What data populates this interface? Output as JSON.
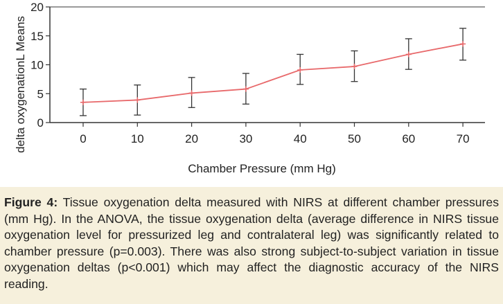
{
  "chart_data": {
    "type": "line",
    "title": "",
    "xlabel": "Chamber Pressure (mm Hg)",
    "ylabel": "delta oxygenationL Means",
    "x": [
      0,
      10,
      20,
      30,
      40,
      50,
      60,
      70
    ],
    "xticks": [
      "0",
      "10",
      "20",
      "30",
      "40",
      "50",
      "60",
      "70"
    ],
    "yticks": [
      "0",
      "5",
      "10",
      "15",
      "20"
    ],
    "ylim": [
      0,
      20
    ],
    "series": [
      {
        "values": [
          3.5,
          3.9,
          5.1,
          5.8,
          9.1,
          9.7,
          11.8,
          13.6
        ],
        "error_low": [
          1.2,
          1.3,
          2.6,
          3.2,
          6.6,
          7.1,
          9.2,
          10.8
        ],
        "error_high": [
          5.8,
          6.5,
          7.8,
          8.5,
          11.8,
          12.4,
          14.5,
          16.3
        ],
        "color": "#e8696b"
      }
    ],
    "grid": false,
    "colors": {
      "line": "#e8696b",
      "axis": "#333333",
      "error_bar": "#333333"
    }
  },
  "caption": {
    "label": "Figure 4:",
    "text": "Tissue oxygenation delta measured with NIRS at different chamber pressures (mm Hg). In the ANOVA, the tissue oxygenation delta (average difference in NIRS tissue oxygenation level for pressurized leg and contralateral leg) was significantly related to chamber pressure (p=0.003). There was also strong subject-to-subject variation in tissue oxygenation deltas (p<0.001) which may affect the diagnostic accuracy of the NIRS reading.",
    "background": "#f6f0dc"
  }
}
